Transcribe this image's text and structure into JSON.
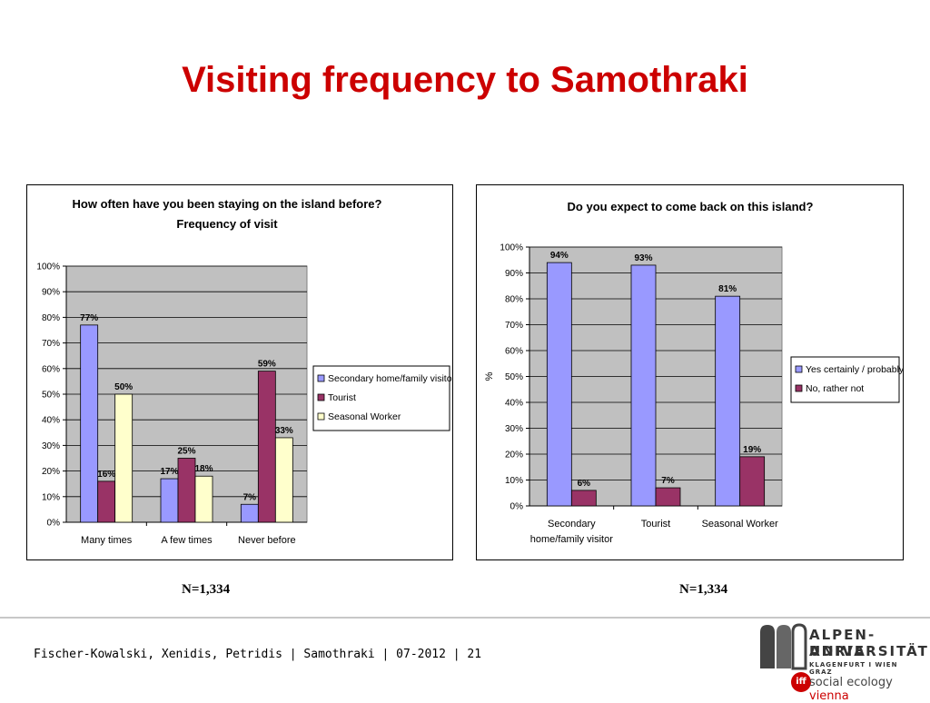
{
  "slide": {
    "title": "Visiting frequency to Samothraki",
    "footer": "Fischer-Kowalski, Xenidis, Petridis | Samothraki | 07-2012 | 21"
  },
  "logo": {
    "line1": "ALPEN-ADRIA",
    "line2": "UNIVERSITÄT",
    "line3": "KLAGENFURT I WIEN GRAZ",
    "badge": "iff",
    "line4_a": "social ecology",
    "line4_b": "vienna"
  },
  "chart_data": [
    {
      "type": "bar",
      "title": "How often have you been staying on the island before?",
      "subtitle": "Frequency of visit",
      "categories": [
        "Many times",
        "A few times",
        "Never before"
      ],
      "series": [
        {
          "name": "Secondary home/family visitor",
          "values": [
            77,
            17,
            7
          ],
          "labels": [
            "77%",
            "17%",
            "7%"
          ],
          "color": "#9999ff"
        },
        {
          "name": "Tourist",
          "values": [
            16,
            25,
            59
          ],
          "labels": [
            "16%",
            "25%",
            "59%"
          ],
          "color": "#993366"
        },
        {
          "name": "Seasonal Worker",
          "values": [
            50,
            18,
            33
          ],
          "labels": [
            "50%",
            "18%",
            "33%"
          ],
          "color": "#ffffcc"
        }
      ],
      "ylim": [
        0,
        100
      ],
      "yticks": [
        "0%",
        "10%",
        "20%",
        "30%",
        "40%",
        "50%",
        "60%",
        "70%",
        "80%",
        "90%",
        "100%"
      ],
      "ylabel": "",
      "xlabel": "",
      "grid": true,
      "plot_bg": "#c0c0c0",
      "legend": "right",
      "n": "N=1,334"
    },
    {
      "type": "bar",
      "title": "Do you expect to come back on this island?",
      "categories": [
        "Secondary home/family visitor",
        "Tourist",
        "Seasonal Worker"
      ],
      "category_lines": [
        [
          "Secondary",
          "home/family visitor"
        ],
        [
          "Tourist"
        ],
        [
          "Seasonal Worker"
        ]
      ],
      "series": [
        {
          "name": "Yes certainly / probably",
          "values": [
            94,
            93,
            81
          ],
          "labels": [
            "94%",
            "93%",
            "81%"
          ],
          "color": "#9999ff"
        },
        {
          "name": "No, rather not",
          "values": [
            6,
            7,
            19
          ],
          "labels": [
            "6%",
            "7%",
            "19%"
          ],
          "color": "#993366"
        }
      ],
      "ylim": [
        0,
        100
      ],
      "yticks": [
        "0%",
        "10%",
        "20%",
        "30%",
        "40%",
        "50%",
        "60%",
        "70%",
        "80%",
        "90%",
        "100%"
      ],
      "ylabel": "%",
      "xlabel": "",
      "grid": true,
      "plot_bg": "#c0c0c0",
      "legend": "right",
      "n": "N=1,334"
    }
  ]
}
